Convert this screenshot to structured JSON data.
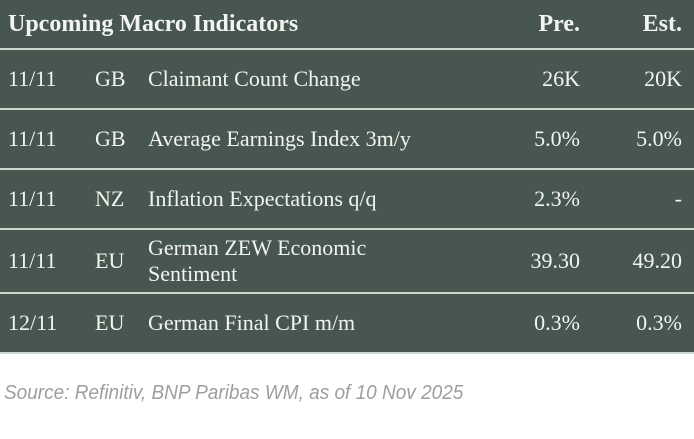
{
  "table": {
    "title": "Upcoming Macro Indicators",
    "columns": {
      "pre": "Pre.",
      "est": "Est."
    },
    "rows": [
      {
        "date": "11/11",
        "country": "GB",
        "indicator": "Claimant Count Change",
        "pre": "26K",
        "est": "20K"
      },
      {
        "date": "11/11",
        "country": "GB",
        "indicator": "Average Earnings Index 3m/y",
        "pre": "5.0%",
        "est": "5.0%"
      },
      {
        "date": "11/11",
        "country": "NZ",
        "indicator": "Inflation Expectations q/q",
        "pre": "2.3%",
        "est": "-"
      },
      {
        "date": "11/11",
        "country": "EU",
        "indicator": "German ZEW Economic Sentiment",
        "pre": "39.30",
        "est": "49.20"
      },
      {
        "date": "12/11",
        "country": "EU",
        "indicator": "German Final CPI m/m",
        "pre": "0.3%",
        "est": "0.3%"
      }
    ]
  },
  "footer": {
    "source": "Source: Refinitiv, BNP Paribas WM, as of 10 Nov 2025"
  },
  "colors": {
    "table_bg": "#47564f",
    "divider": "#cbd8cd",
    "text": "#f2f4f1",
    "source_text": "#9b9f9d"
  }
}
